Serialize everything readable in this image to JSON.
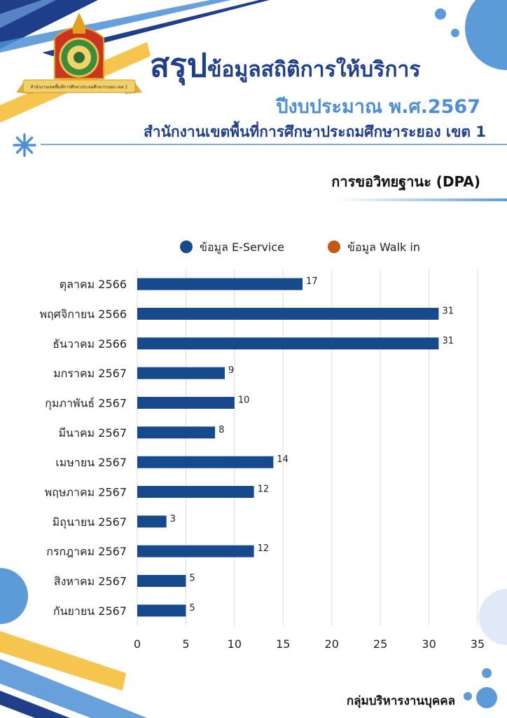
{
  "header": {
    "title_big": "สรุป",
    "title_rest": "ข้อมูลสถิติการให้บริการ",
    "subtitle": "ปีงบประมาณ พ.ศ.2567",
    "office": "สำนักงานเขตพื้นที่การศึกษาประถมศึกษาระยอง เขต 1",
    "logo_banner_text": "สำนักงานเขตพื้นที่การศึกษาประถมศึกษาระยอง เขต 1"
  },
  "section_title": "การขอวิทยฐานะ (DPA)",
  "footer": "กลุ่มบริหารงานบุคคล",
  "colors": {
    "navy": "#1f3f8a",
    "light_blue": "#4d8fd6",
    "accent_yellow": "#f6c550",
    "bar": "#174a8c",
    "walkin": "#c25a14"
  },
  "chart_data": {
    "type": "bar",
    "orientation": "horizontal",
    "categories": [
      "ตุลาคม 2566",
      "พฤศจิกายน 2566",
      "ธันวาคม 2566",
      "มกราคม 2567",
      "กุมภาพันธ์ 2567",
      "มีนาคม 2567",
      "เมษายน 2567",
      "พฤษภาคม 2567",
      "มิถุนายน 2567",
      "กรกฎาคม 2567",
      "สิงหาคม 2567",
      "กันยายน 2567"
    ],
    "series": [
      {
        "name": "ข้อมูล E-Service",
        "color": "#174a8c",
        "values": [
          17,
          31,
          31,
          9,
          10,
          8,
          14,
          12,
          3,
          12,
          5,
          5
        ]
      },
      {
        "name": "ข้อมูล Walk in",
        "color": "#c25a14",
        "values": [
          0,
          0,
          0,
          0,
          0,
          0,
          0,
          0,
          0,
          0,
          0,
          0
        ]
      }
    ],
    "xlim": [
      0,
      35
    ],
    "xticks": [
      0,
      5,
      10,
      15,
      20,
      25,
      30,
      35
    ],
    "grid": true,
    "legend_position": "top"
  }
}
